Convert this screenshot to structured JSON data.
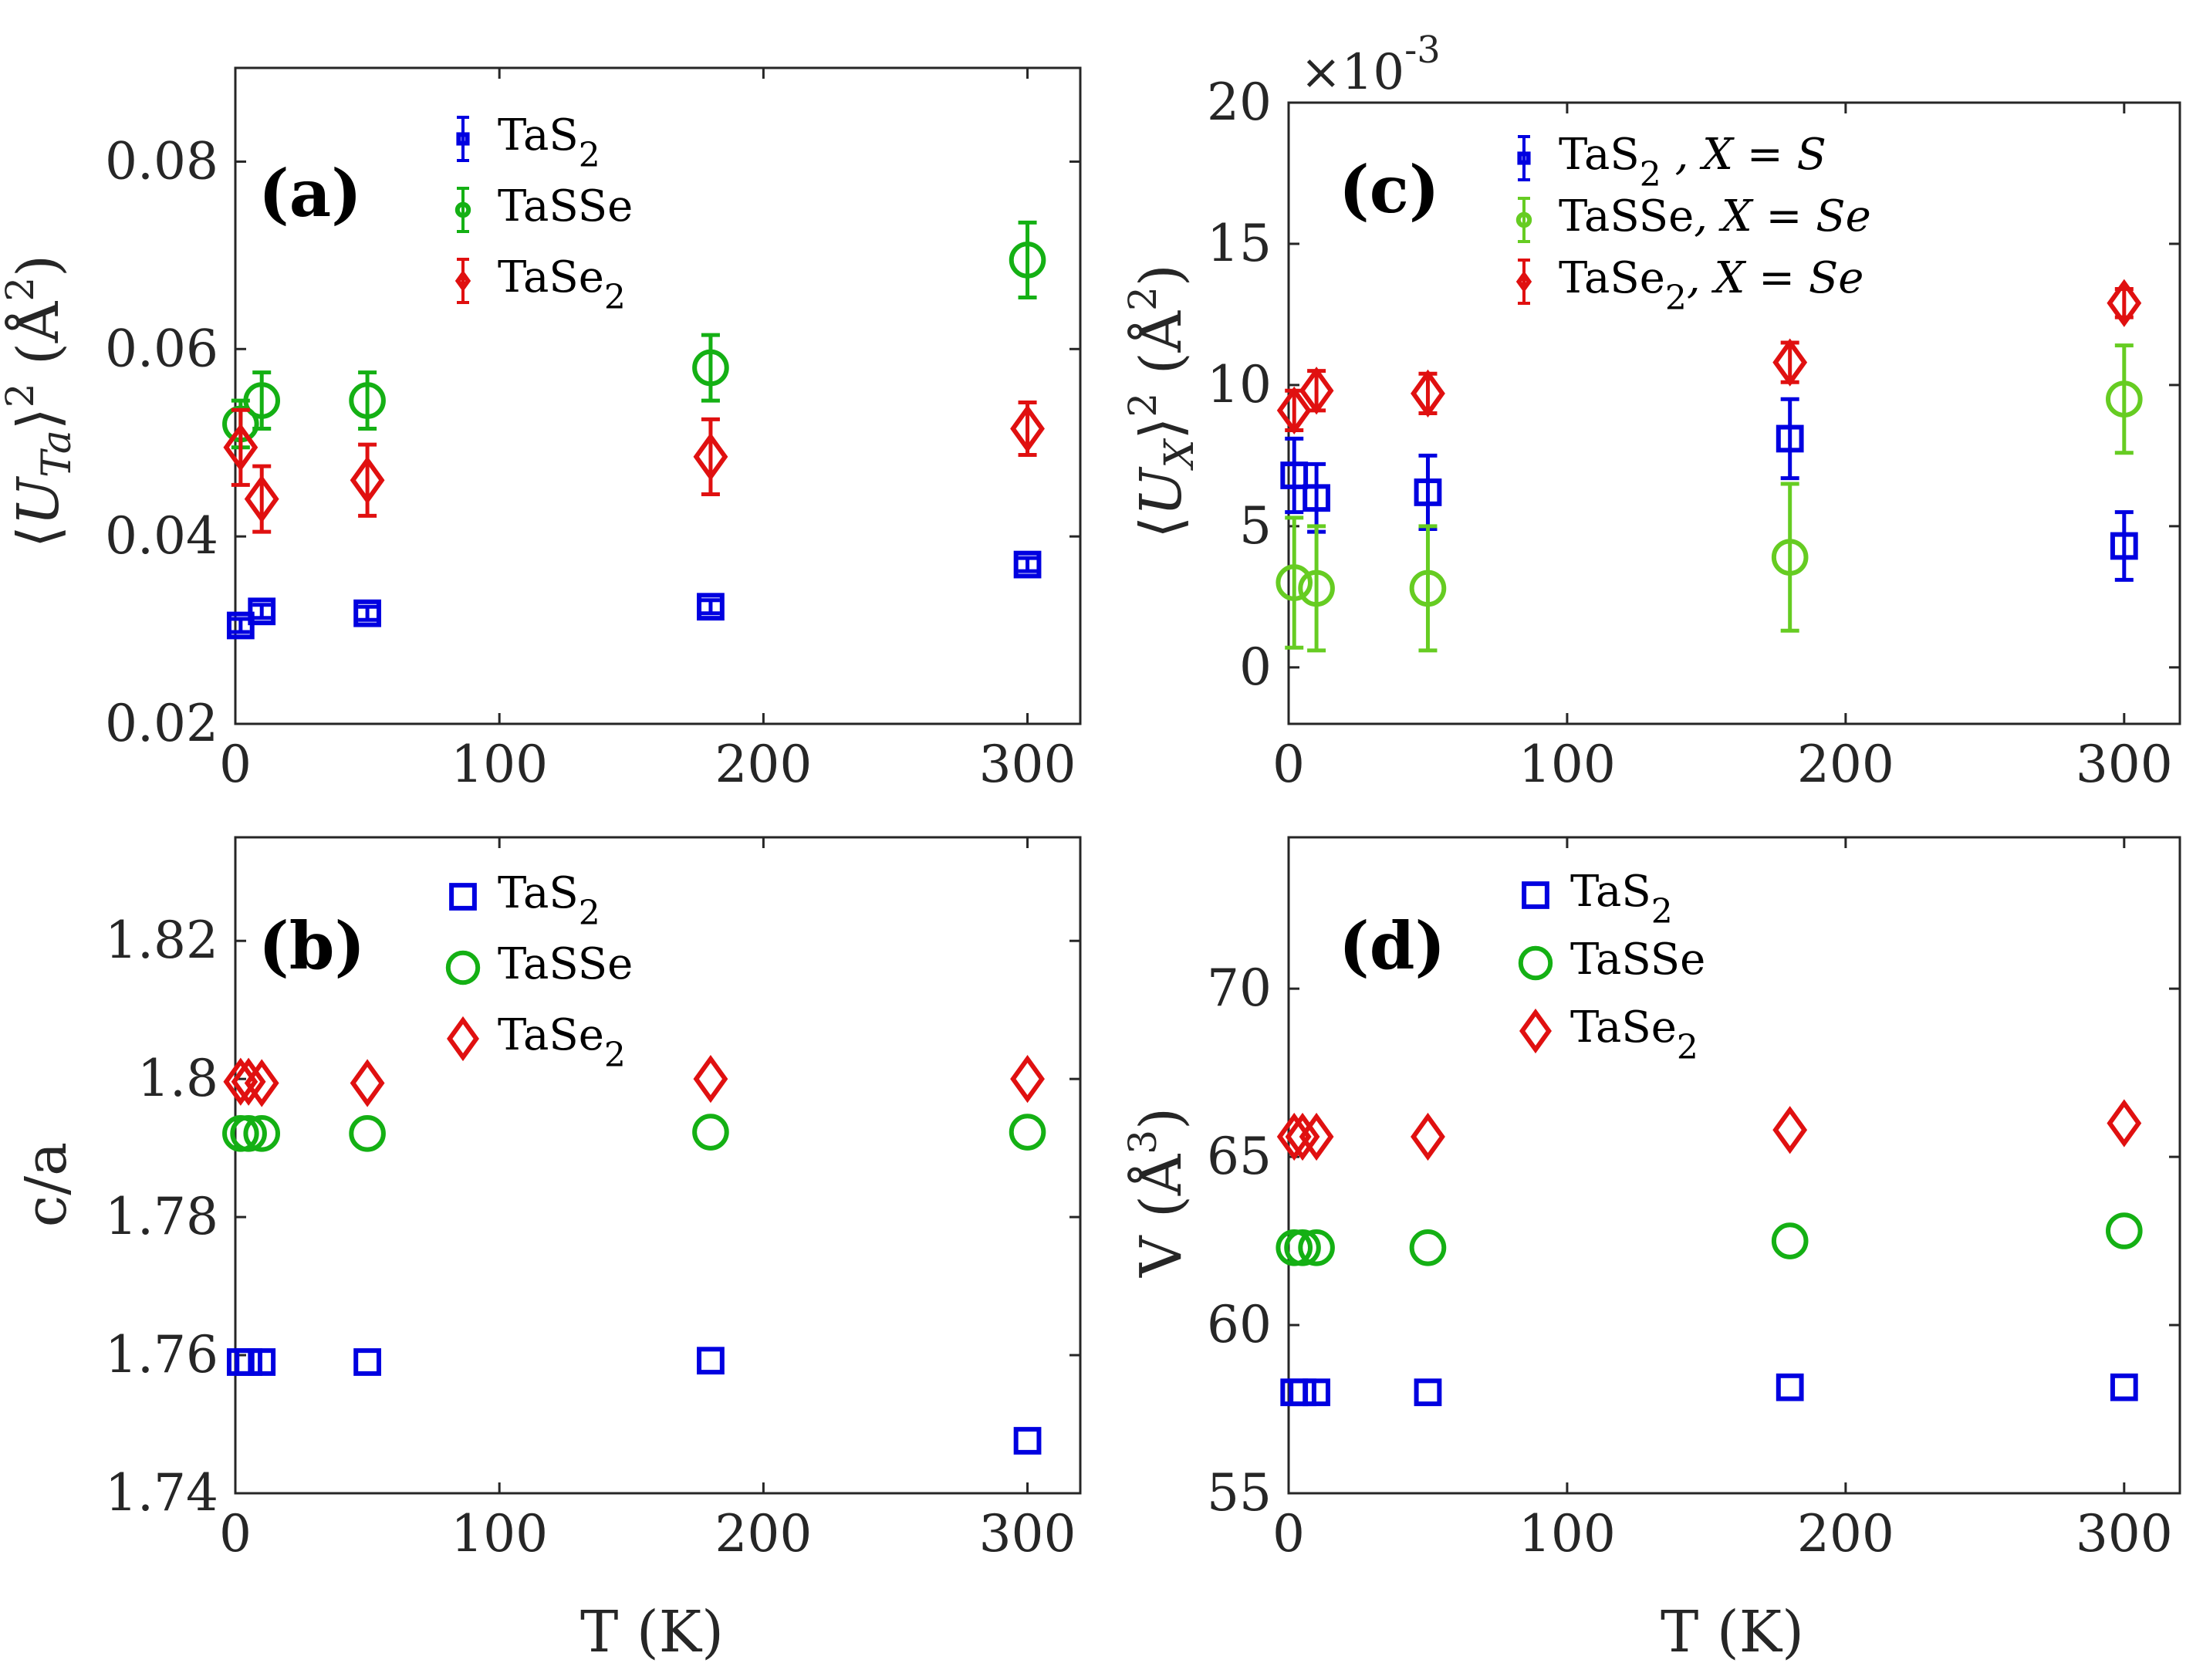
{
  "colors": {
    "TaS2": "#0000e0",
    "TaSSe": "#14b014",
    "TaSSe_c": "#66cc22",
    "TaSe2": "#e01010",
    "axis": "#262626"
  },
  "chart_data": [
    {
      "id": "a",
      "type": "scatter",
      "panel_label": "(a)",
      "ylabel": "⟨U_Ta⟩² (Å²)",
      "xlabel": "",
      "xlim": [
        0,
        320
      ],
      "ylim": [
        0.02,
        0.09
      ],
      "xticks": [
        "0",
        "100",
        "200",
        "300"
      ],
      "yticks": [
        "0.02",
        "0.04",
        "0.06",
        "0.08"
      ],
      "legend_position": "top-center",
      "series": [
        {
          "name": "TaS",
          "sub": "2",
          "key": "TaS2",
          "marker": "square",
          "x": [
            2,
            10,
            50,
            180,
            300
          ],
          "y": [
            0.0305,
            0.032,
            0.0318,
            0.0325,
            0.037
          ],
          "err": [
            0.0007,
            0.0007,
            0.0007,
            0.0007,
            0.0007
          ]
        },
        {
          "name": "TaSSe",
          "sub": "",
          "key": "TaSSe",
          "marker": "circle",
          "x": [
            2,
            10,
            50,
            180,
            300
          ],
          "y": [
            0.052,
            0.0545,
            0.0545,
            0.058,
            0.0695
          ],
          "err": [
            0.0025,
            0.003,
            0.003,
            0.0035,
            0.004
          ]
        },
        {
          "name": "TaSe",
          "sub": "2",
          "key": "TaSe2",
          "marker": "diamond",
          "x": [
            2,
            10,
            50,
            180,
            300
          ],
          "y": [
            0.0495,
            0.044,
            0.046,
            0.0485,
            0.0515
          ],
          "err": [
            0.004,
            0.0035,
            0.0038,
            0.004,
            0.0028
          ]
        }
      ]
    },
    {
      "id": "b",
      "type": "scatter",
      "panel_label": "(b)",
      "ylabel": "c/a",
      "xlabel": "T (K)",
      "xlim": [
        0,
        320
      ],
      "ylim": [
        1.74,
        1.835
      ],
      "xticks": [
        "0",
        "100",
        "200",
        "300"
      ],
      "yticks": [
        "1.74",
        "1.76",
        "1.78",
        "1.8",
        "1.82"
      ],
      "legend_position": "top-center",
      "series": [
        {
          "name": "TaS",
          "sub": "2",
          "key": "TaS2",
          "marker": "square",
          "x": [
            2,
            5,
            10,
            50,
            180,
            300
          ],
          "y": [
            1.759,
            1.759,
            1.759,
            1.759,
            1.7592,
            1.7476
          ]
        },
        {
          "name": "TaSSe",
          "sub": "",
          "key": "TaSSe",
          "marker": "circle",
          "x": [
            2,
            5,
            10,
            50,
            180,
            300
          ],
          "y": [
            1.7921,
            1.7921,
            1.7921,
            1.7921,
            1.7923,
            1.7923
          ]
        },
        {
          "name": "TaSe",
          "sub": "2",
          "key": "TaSe2",
          "marker": "diamond",
          "x": [
            2,
            5,
            10,
            50,
            180,
            300
          ],
          "y": [
            1.7996,
            1.7996,
            1.7994,
            1.7994,
            1.8,
            1.8
          ]
        }
      ]
    },
    {
      "id": "c",
      "type": "scatter",
      "panel_label": "(c)",
      "ylabel": "⟨U_X⟩² (Å²)",
      "xlabel": "",
      "multiplier": "×10",
      "multiplier_exp": "-3",
      "xlim": [
        0,
        320
      ],
      "ylim": [
        -2,
        20
      ],
      "xticks": [
        "0",
        "100",
        "200",
        "300"
      ],
      "yticks": [
        "0",
        "5",
        "10",
        "15",
        "20"
      ],
      "legend_position": "top-center",
      "series": [
        {
          "name": "TaS",
          "sub": "2",
          "suffix": "   , X = S",
          "key": "TaS2",
          "marker": "square",
          "x": [
            2,
            10,
            50,
            180,
            300
          ],
          "y": [
            6.8,
            6.0,
            6.2,
            8.1,
            4.3
          ],
          "err": [
            1.3,
            1.2,
            1.3,
            1.4,
            1.2
          ]
        },
        {
          "name": "TaSSe",
          "sub": "",
          "suffix": ", X = Se",
          "key": "TaSSe_c",
          "marker": "circle",
          "x": [
            2,
            10,
            50,
            180,
            300
          ],
          "y": [
            3.0,
            2.8,
            2.8,
            3.9,
            9.5
          ],
          "err": [
            2.3,
            2.2,
            2.2,
            2.6,
            1.9
          ]
        },
        {
          "name": "TaSe",
          "sub": "2",
          "suffix": ", X = Se",
          "key": "TaSe2",
          "marker": "diamond",
          "x": [
            2,
            10,
            50,
            180,
            300
          ],
          "y": [
            9.1,
            9.8,
            9.7,
            10.8,
            12.9
          ],
          "err": [
            0.7,
            0.7,
            0.7,
            0.7,
            0.5
          ]
        }
      ]
    },
    {
      "id": "d",
      "type": "scatter",
      "panel_label": "(d)",
      "ylabel": "V (Å³)",
      "xlabel": "T (K)",
      "xlim": [
        0,
        320
      ],
      "ylim": [
        55,
        74.5
      ],
      "xticks": [
        "0",
        "100",
        "200",
        "300"
      ],
      "yticks": [
        "55",
        "60",
        "65",
        "70"
      ],
      "legend_position": "top-center",
      "series": [
        {
          "name": "TaS",
          "sub": "2",
          "key": "TaS2",
          "marker": "square",
          "x": [
            2,
            5,
            10,
            50,
            180,
            300
          ],
          "y": [
            58.0,
            58.0,
            58.0,
            58.0,
            58.15,
            58.15
          ]
        },
        {
          "name": "TaSSe",
          "sub": "",
          "key": "TaSSe",
          "marker": "circle",
          "x": [
            2,
            5,
            10,
            50,
            180,
            300
          ],
          "y": [
            62.3,
            62.3,
            62.3,
            62.3,
            62.5,
            62.8
          ]
        },
        {
          "name": "TaSe",
          "sub": "2",
          "key": "TaSe2",
          "marker": "diamond",
          "x": [
            2,
            5,
            10,
            50,
            180,
            300
          ],
          "y": [
            65.6,
            65.6,
            65.6,
            65.6,
            65.8,
            66.0
          ]
        }
      ]
    }
  ]
}
